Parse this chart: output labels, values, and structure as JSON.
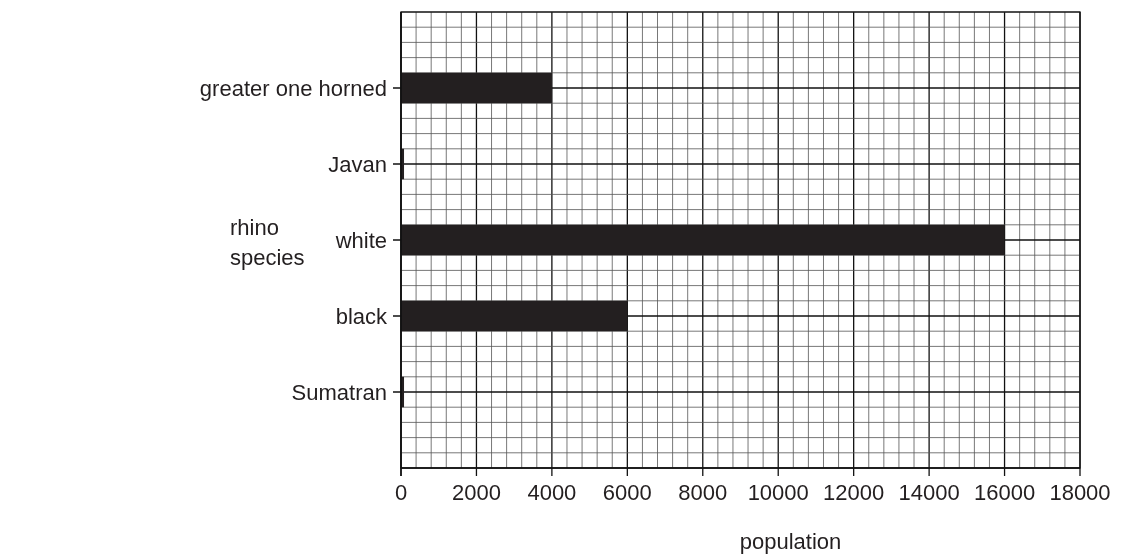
{
  "chart_data": {
    "type": "bar",
    "orientation": "horizontal",
    "categories": [
      "greater one horned",
      "Javan",
      "white",
      "black",
      "Sumatran"
    ],
    "values": [
      4000,
      80,
      16000,
      6000,
      80
    ],
    "color": "#231f20",
    "xlim": [
      0,
      18000
    ],
    "xticks": [
      0,
      2000,
      4000,
      6000,
      8000,
      10000,
      12000,
      14000,
      16000,
      18000
    ],
    "xlabel": "population",
    "ylabel": "rhino species",
    "grid": true
  }
}
